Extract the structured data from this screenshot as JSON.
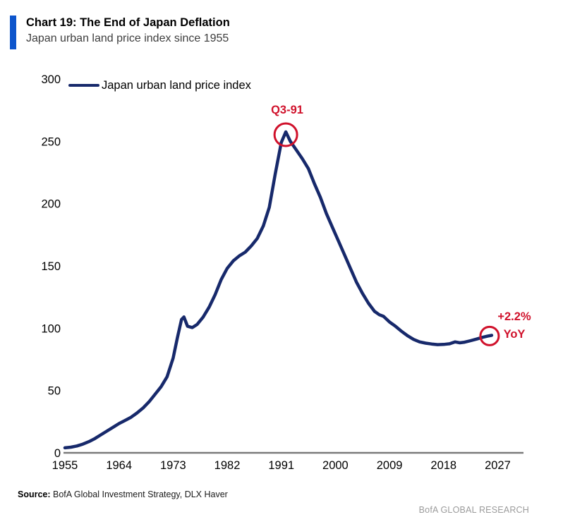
{
  "header": {
    "title": "Chart 19: The End of Japan Deflation",
    "subtitle": "Japan urban land price index since 1955"
  },
  "legend": {
    "label": "Japan urban land price index"
  },
  "source": {
    "label": "Source:",
    "text": " BofA Global Investment Strategy, DLX Haver"
  },
  "footer": {
    "brand": "BofA GLOBAL RESEARCH"
  },
  "colors": {
    "line": "#17296B",
    "red": "#D0112B",
    "accent_bar": "#0D55CC",
    "axis": "#7A7A7A",
    "brand_gray": "#9B9B9B"
  },
  "chart_data": {
    "type": "line",
    "title": "Chart 19: The End of Japan Deflation",
    "subtitle": "Japan urban land price index since 1955",
    "xlabel": "",
    "ylabel": "",
    "x_ticks": [
      1955,
      1964,
      1973,
      1982,
      1991,
      2000,
      2009,
      2018,
      2027
    ],
    "y_ticks": [
      0,
      50,
      100,
      150,
      200,
      250,
      300
    ],
    "xlim": [
      1955,
      2031
    ],
    "ylim": [
      0,
      300
    ],
    "grid": false,
    "legend_position": "top-left",
    "annotations": {
      "peak": {
        "text": "Q3-91",
        "year": 1991.75,
        "value": 257.5,
        "style": "red circle around peak"
      },
      "end": {
        "text_line1": "+2.2%",
        "text_line2": "YoY",
        "year": 2026,
        "value": 94.3,
        "style": "red circle around line end"
      }
    },
    "series": [
      {
        "name": "Japan urban land price index",
        "color": "#17296B",
        "points": [
          [
            1955,
            4
          ],
          [
            1956,
            4.5
          ],
          [
            1957,
            5.5
          ],
          [
            1958,
            7
          ],
          [
            1959,
            9
          ],
          [
            1960,
            11.5
          ],
          [
            1961,
            14.5
          ],
          [
            1962,
            17.5
          ],
          [
            1963,
            20.5
          ],
          [
            1964,
            23.5
          ],
          [
            1965,
            26
          ],
          [
            1966,
            28.5
          ],
          [
            1967,
            32
          ],
          [
            1968,
            36
          ],
          [
            1969,
            41
          ],
          [
            1970,
            47
          ],
          [
            1971,
            53
          ],
          [
            1972,
            61
          ],
          [
            1973,
            76
          ],
          [
            1973.7,
            92
          ],
          [
            1974.4,
            107
          ],
          [
            1974.8,
            109
          ],
          [
            1975.4,
            101.5
          ],
          [
            1976.2,
            100.5
          ],
          [
            1977,
            103
          ],
          [
            1978,
            109
          ],
          [
            1979,
            117
          ],
          [
            1980,
            127
          ],
          [
            1981,
            139
          ],
          [
            1982,
            148
          ],
          [
            1983,
            154
          ],
          [
            1984,
            158
          ],
          [
            1985,
            161
          ],
          [
            1986,
            166
          ],
          [
            1987,
            172
          ],
          [
            1988,
            182
          ],
          [
            1989,
            197
          ],
          [
            1990,
            224
          ],
          [
            1991,
            249
          ],
          [
            1991.75,
            257.5
          ],
          [
            1992.5,
            250
          ],
          [
            1993.5,
            243
          ],
          [
            1994.5,
            236
          ],
          [
            1995.5,
            228
          ],
          [
            1996.5,
            216
          ],
          [
            1997.5,
            205
          ],
          [
            1998.5,
            192
          ],
          [
            1999.5,
            181
          ],
          [
            2000.5,
            170
          ],
          [
            2001.5,
            159
          ],
          [
            2002.5,
            148
          ],
          [
            2003.5,
            137
          ],
          [
            2004.5,
            128
          ],
          [
            2005.5,
            120
          ],
          [
            2006.5,
            113.5
          ],
          [
            2007.3,
            110.8
          ],
          [
            2008,
            109.5
          ],
          [
            2009,
            105
          ],
          [
            2010,
            101.5
          ],
          [
            2011,
            97.5
          ],
          [
            2012,
            94
          ],
          [
            2013,
            91
          ],
          [
            2014,
            89
          ],
          [
            2015,
            88
          ],
          [
            2016,
            87.3
          ],
          [
            2017,
            86.8
          ],
          [
            2018,
            87
          ],
          [
            2019,
            87.5
          ],
          [
            2019.9,
            89
          ],
          [
            2020.7,
            88.3
          ],
          [
            2021.5,
            88.8
          ],
          [
            2022.5,
            90
          ],
          [
            2023.5,
            91.3
          ],
          [
            2024.5,
            92.7
          ],
          [
            2025.3,
            93.6
          ],
          [
            2026,
            94.3
          ]
        ]
      }
    ]
  }
}
